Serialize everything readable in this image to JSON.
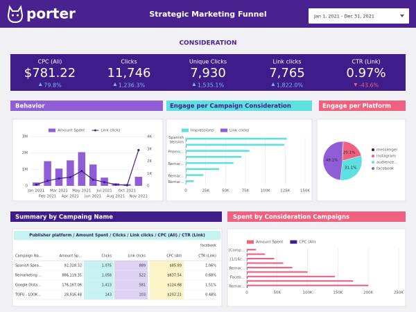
{
  "header": {
    "logo": "porter",
    "title": "Strategic Marketing Funnel",
    "date_range": "Jan 1, 2021 - Dec 31, 2021"
  },
  "section_title": "CONSIDERATION",
  "kpis": [
    {
      "label": "CPC (All)",
      "value": "$781.22",
      "change": "79.8%",
      "trend": "up",
      "color": "#7fb3ff"
    },
    {
      "label": "Clicks",
      "value": "11,746",
      "change": "1,236.3%",
      "trend": "up",
      "color": "#7fb3ff"
    },
    {
      "label": "Unique Clicks",
      "value": "7,930",
      "change": "1,535.1%",
      "trend": "up",
      "color": "#7fb3ff"
    },
    {
      "label": "Link clicks",
      "value": "7,765",
      "change": "1,822.0%",
      "trend": "up",
      "color": "#7fb3ff"
    },
    {
      "label": "CTR (Link)",
      "value": "0.97%",
      "change": "-43.6%",
      "trend": "down",
      "color": "#f0607f"
    }
  ],
  "panels": {
    "behavior": "Behavior",
    "engage_campaign": "Engage per Campaign Consideration",
    "engage_platform": "Engage per Platform",
    "summary": "Summary by Campaing Name",
    "spent": "Spent by Consideration Campaigns"
  },
  "chart_data": [
    {
      "type": "combo",
      "categories": [
        "Jan 2021",
        "Feb 2021",
        "Mar 2021",
        "Apr 2021",
        "May 2021",
        "Jun 2021",
        "Jul 2021",
        "Aug 2021",
        "Oct 2021",
        "Nov 2021"
      ],
      "series": [
        {
          "name": "Amount Spent",
          "color": "#8f5ed6",
          "type": "bar",
          "values": [
            200000,
            1500000,
            1050000,
            1550000,
            2050000,
            1300000,
            500000,
            150000,
            100000,
            550000
          ]
        },
        {
          "name": "Link clicks",
          "color": "#3e1d8a",
          "type": "line",
          "axis": "y2",
          "values": [
            100,
            400,
            600,
            700,
            1200,
            500,
            300,
            100,
            50,
            2900
          ]
        }
      ],
      "ylim": [
        0,
        3000000
      ],
      "yticks": [
        0,
        {
          "value": 1000000,
          "label": "1M"
        },
        {
          "value": 2000000,
          "label": "2M"
        },
        {
          "value": 3000000,
          "label": "3M"
        }
      ],
      "y2lim": [
        0,
        4000
      ],
      "y2ticks": [
        0,
        {
          "value": 1000,
          "label": "1K"
        },
        {
          "value": 2000,
          "label": "2K"
        },
        {
          "value": 3000,
          "label": "3K"
        },
        {
          "value": 4000,
          "label": "4K"
        }
      ],
      "grid": true
    },
    {
      "type": "hbar",
      "categories": [
        "Spanish Version",
        null,
        "Promo...",
        null,
        "Remar...",
        null,
        "Remar...",
        "Remar..."
      ],
      "series": [
        {
          "name": "Impressions",
          "color": "#5ee0e0",
          "values": [
            127000,
            124000,
            80000,
            70000,
            60000,
            42000,
            22000,
            10000
          ]
        },
        {
          "name": "Link clicks",
          "color": "#8f5ed6",
          "values": [
            900,
            800,
            600,
            500,
            400,
            300,
            200,
            100
          ]
        }
      ],
      "xlim": [
        0,
        150000
      ],
      "xticks": [
        0,
        {
          "value": 25000,
          "label": "25K"
        },
        {
          "value": 50000,
          "label": "50K"
        },
        {
          "value": 75000,
          "label": "75K"
        },
        {
          "value": 100000,
          "label": "100K"
        },
        {
          "value": 125000,
          "label": "125K"
        },
        {
          "value": 150000,
          "label": "150K"
        }
      ],
      "grid": true
    },
    {
      "type": "pie",
      "categories": [
        "messenger",
        "instagram",
        "audience...",
        "facebook"
      ],
      "values": [
        0.7,
        20.1,
        31.1,
        48.1
      ],
      "value_labels": [
        null,
        "20.1%",
        "31.1%",
        "48.1%"
      ],
      "colors": [
        "#2a1a5e",
        "#f0607f",
        "#5ee0e0",
        "#8f5ed6"
      ]
    },
    {
      "type": "hbar",
      "categories": [
        "[Comp...",
        null,
        "[1/16/...",
        null,
        "Remar...",
        null,
        "Faceb...",
        null,
        "Remar..."
      ],
      "series": [
        {
          "name": "Amount Spent",
          "color": "#f0607f",
          "values": [
            15000,
            30000,
            45000,
            60000,
            75000,
            100000,
            145000,
            175000,
            200000
          ]
        },
        {
          "name": "CPC (All)",
          "color": "#3e1d8a",
          "values": [
            300,
            400,
            500,
            600,
            700,
            800,
            900,
            1000,
            1100
          ]
        }
      ],
      "xlim": [
        0,
        250000
      ],
      "xticks": [
        0,
        {
          "value": 50000,
          "label": "50K"
        },
        {
          "value": 100000,
          "label": "100K"
        },
        {
          "value": 150000,
          "label": "150K"
        },
        {
          "value": 200000,
          "label": "200K"
        },
        {
          "value": 250000,
          "label": "250K"
        }
      ],
      "grid": true
    }
  ],
  "table": {
    "title": "Publisher platform / Amount Spent / Clicks / Link clicks / CPC (All) / CTR (Link)",
    "group": "facebook",
    "columns": [
      "Campaign Na...",
      "Amount Sp...",
      "Clicks",
      "Link clicks",
      "CPC (All)",
      "CTR (Link)"
    ],
    "rows": [
      [
        "Spanish Spea...",
        "92,328.32",
        "1,075",
        "889",
        "$85.89",
        "1.06%"
      ],
      [
        "Remarketing ...",
        "886,119.35",
        "1,058",
        "522",
        "$837.54",
        "0.68%"
      ],
      [
        "Google Dista...",
        "176,167.06",
        "1,413",
        "581",
        "$124.68",
        "1.51%"
      ],
      [
        "TOFU - LOOK...",
        "28,916.48",
        "143",
        "103",
        "$202.21",
        "0.48%"
      ]
    ]
  }
}
